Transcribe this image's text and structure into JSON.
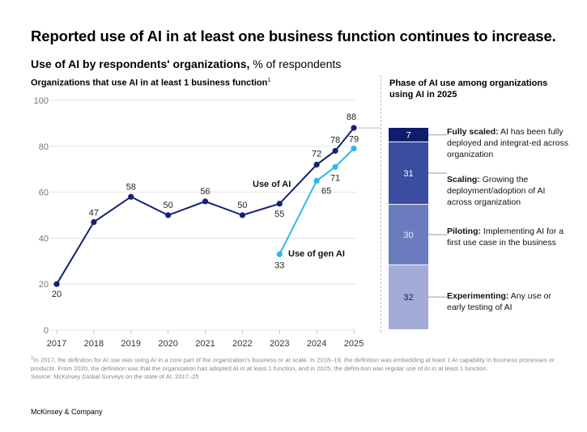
{
  "title": "Reported use of AI in at least one business function continues to increase.",
  "subtitle_bold": "Use of AI by respondents' organizations,",
  "subtitle_rest": " % of respondents",
  "left_header": "Organizations that use AI in at least 1 business function",
  "left_header_sup": "1",
  "right_header": "Phase of AI use among organizations using AI in 2025",
  "colors": {
    "ai": "#15226f",
    "gen_ai": "#2db8ec",
    "fully_scaled": "#0f1c6e",
    "scaling": "#3a4da0",
    "piloting": "#6a7cbd",
    "experimenting": "#a2acd6"
  },
  "chart_data": [
    {
      "type": "line",
      "x": [
        2017,
        2018,
        2019,
        2020,
        2021,
        2022,
        2023,
        2024,
        2024.5,
        2025
      ],
      "x_tick_labels": [
        "2017",
        "2018",
        "2019",
        "2020",
        "2021",
        "2022",
        "2023",
        "2024",
        "2025"
      ],
      "ylim": [
        0,
        100
      ],
      "y_ticks": [
        0,
        20,
        40,
        60,
        80,
        100
      ],
      "grid": true,
      "series": [
        {
          "name": "Use of AI",
          "x": [
            2017,
            2018,
            2019,
            2020,
            2021,
            2022,
            2023,
            2024,
            2024.5,
            2025
          ],
          "values": [
            20,
            47,
            58,
            50,
            56,
            50,
            55,
            72,
            78,
            88
          ],
          "labels": [
            "20",
            "47",
            "58",
            "50",
            "56",
            "50",
            "55",
            "72",
            "78",
            "88"
          ]
        },
        {
          "name": "Use of gen AI",
          "x": [
            2023,
            2024,
            2024.5,
            2025
          ],
          "values": [
            33,
            65,
            71,
            79
          ],
          "labels": [
            "33",
            "65",
            "71",
            "79"
          ]
        }
      ]
    },
    {
      "type": "bar",
      "stacked": true,
      "categories": [
        "Fully scaled",
        "Scaling",
        "Piloting",
        "Experimenting"
      ],
      "values": [
        7,
        31,
        30,
        32
      ],
      "labels": [
        "7",
        "31",
        "30",
        "32"
      ]
    }
  ],
  "phases": [
    {
      "label": "Fully scaled:",
      "desc": " AI has been fully deployed and integrat-ed across organization"
    },
    {
      "label": "Scaling:",
      "desc": " Growing the deployment/adoption of AI across organization"
    },
    {
      "label": "Piloting:",
      "desc": " Implementing AI for a first use case in the business"
    },
    {
      "label": "Experimenting:",
      "desc": " Any use or early testing of AI"
    }
  ],
  "footnote_1": "In 2017, the definition for AI use was using AI in a core part of the organization's business or at scale. In 2018–19, the definition was embedding at least 1 AI capability in business processes or products. From 2020, the definition was that the organization has adopted AI in at least 1 function, and in 2025, the defini-tion was regular use of AI in at least 1 function.",
  "footnote_sup": "1",
  "source": "Source: McKinsey Global Surveys on the state of AI, 2017–25",
  "brand": "McKinsey & Company"
}
